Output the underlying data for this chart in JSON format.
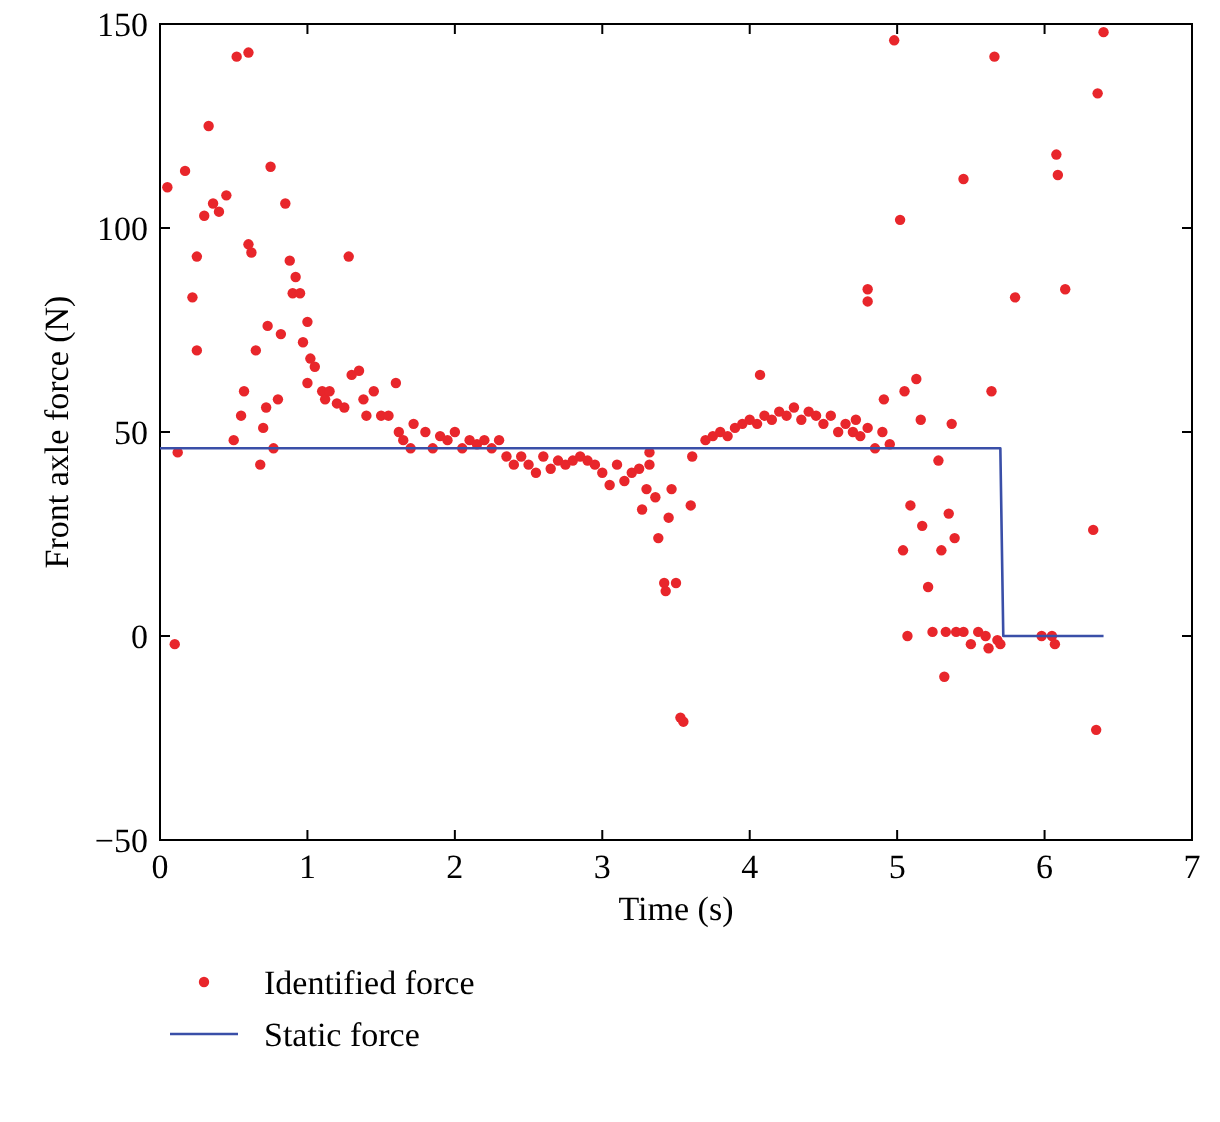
{
  "chart_data": {
    "type": "scatter",
    "xlabel": "Time (s)",
    "ylabel": "Front axle force (N)",
    "xlim": [
      0,
      7
    ],
    "ylim": [
      -50,
      150
    ],
    "xticks": [
      0,
      1,
      2,
      3,
      4,
      5,
      6,
      7
    ],
    "yticks": [
      -50,
      0,
      50,
      100,
      150
    ],
    "grid": false,
    "legend": "bottom",
    "series": [
      {
        "name": "Identified force",
        "color": "#e8262b",
        "marker": "circle",
        "x": [
          0.05,
          0.1,
          0.12,
          0.17,
          0.22,
          0.25,
          0.25,
          0.3,
          0.33,
          0.36,
          0.4,
          0.45,
          0.5,
          0.52,
          0.55,
          0.57,
          0.6,
          0.6,
          0.62,
          0.65,
          0.68,
          0.7,
          0.72,
          0.73,
          0.75,
          0.77,
          0.8,
          0.82,
          0.85,
          0.88,
          0.9,
          0.92,
          0.95,
          0.97,
          1.0,
          1.0,
          1.02,
          1.05,
          1.1,
          1.12,
          1.15,
          1.2,
          1.25,
          1.28,
          1.3,
          1.35,
          1.38,
          1.4,
          1.45,
          1.5,
          1.55,
          1.6,
          1.62,
          1.65,
          1.7,
          1.72,
          1.8,
          1.85,
          1.9,
          1.95,
          2.0,
          2.05,
          2.1,
          2.15,
          2.2,
          2.25,
          2.3,
          2.35,
          2.4,
          2.45,
          2.5,
          2.55,
          2.6,
          2.65,
          2.7,
          2.75,
          2.8,
          2.85,
          2.9,
          2.95,
          3.0,
          3.05,
          3.1,
          3.15,
          3.2,
          3.25,
          3.27,
          3.3,
          3.32,
          3.32,
          3.36,
          3.38,
          3.42,
          3.43,
          3.45,
          3.47,
          3.5,
          3.53,
          3.55,
          3.6,
          3.61,
          3.7,
          3.75,
          3.8,
          3.85,
          3.9,
          3.95,
          4.0,
          4.05,
          4.07,
          4.1,
          4.15,
          4.2,
          4.25,
          4.3,
          4.35,
          4.4,
          4.45,
          4.5,
          4.55,
          4.6,
          4.65,
          4.7,
          4.72,
          4.75,
          4.8,
          4.8,
          4.8,
          4.85,
          4.9,
          4.91,
          4.95,
          4.98,
          5.02,
          5.04,
          5.05,
          5.07,
          5.09,
          5.13,
          5.16,
          5.17,
          5.21,
          5.24,
          5.28,
          5.3,
          5.32,
          5.33,
          5.35,
          5.37,
          5.39,
          5.4,
          5.45,
          5.45,
          5.5,
          5.55,
          5.6,
          5.62,
          5.64,
          5.66,
          5.68,
          5.7,
          5.8,
          5.98,
          6.05,
          6.07,
          6.08,
          6.09,
          6.14,
          6.33,
          6.35,
          6.36,
          6.4
        ],
        "values": [
          110,
          -2,
          45,
          114,
          83,
          70,
          93,
          103,
          125,
          106,
          104,
          108,
          48,
          142,
          54,
          60,
          143,
          96,
          94,
          70,
          42,
          51,
          56,
          76,
          115,
          46,
          58,
          74,
          106,
          92,
          84,
          88,
          84,
          72,
          62,
          77,
          68,
          66,
          60,
          58,
          60,
          57,
          56,
          93,
          64,
          65,
          58,
          54,
          60,
          54,
          54,
          62,
          50,
          48,
          46,
          52,
          50,
          46,
          49,
          48,
          50,
          46,
          48,
          47,
          48,
          46,
          48,
          44,
          42,
          44,
          42,
          40,
          44,
          41,
          43,
          42,
          43,
          44,
          43,
          42,
          40,
          37,
          42,
          38,
          40,
          41,
          31,
          36,
          45,
          42,
          34,
          24,
          13,
          11,
          29,
          36,
          13,
          -20,
          -21,
          32,
          44,
          48,
          49,
          50,
          49,
          51,
          52,
          53,
          52,
          64,
          54,
          53,
          55,
          54,
          56,
          53,
          55,
          54,
          52,
          54,
          50,
          52,
          50,
          53,
          49,
          51,
          85,
          82,
          46,
          50,
          58,
          47,
          146,
          102,
          21,
          60,
          0,
          32,
          63,
          53,
          27,
          12,
          1,
          43,
          21,
          -10,
          1,
          30,
          52,
          24,
          1,
          112,
          1,
          -2,
          1,
          0,
          -3,
          60,
          142,
          -1,
          -2,
          83,
          0,
          0,
          -2,
          118,
          113,
          85,
          26,
          -23,
          133,
          148
        ]
      },
      {
        "name": "Static force",
        "type": "line",
        "color": "#3a4fa8",
        "marker": "none",
        "line_style": "solid",
        "x": [
          0,
          5.7,
          5.72,
          6.4
        ],
        "values": [
          46,
          46,
          0,
          0
        ]
      }
    ]
  }
}
